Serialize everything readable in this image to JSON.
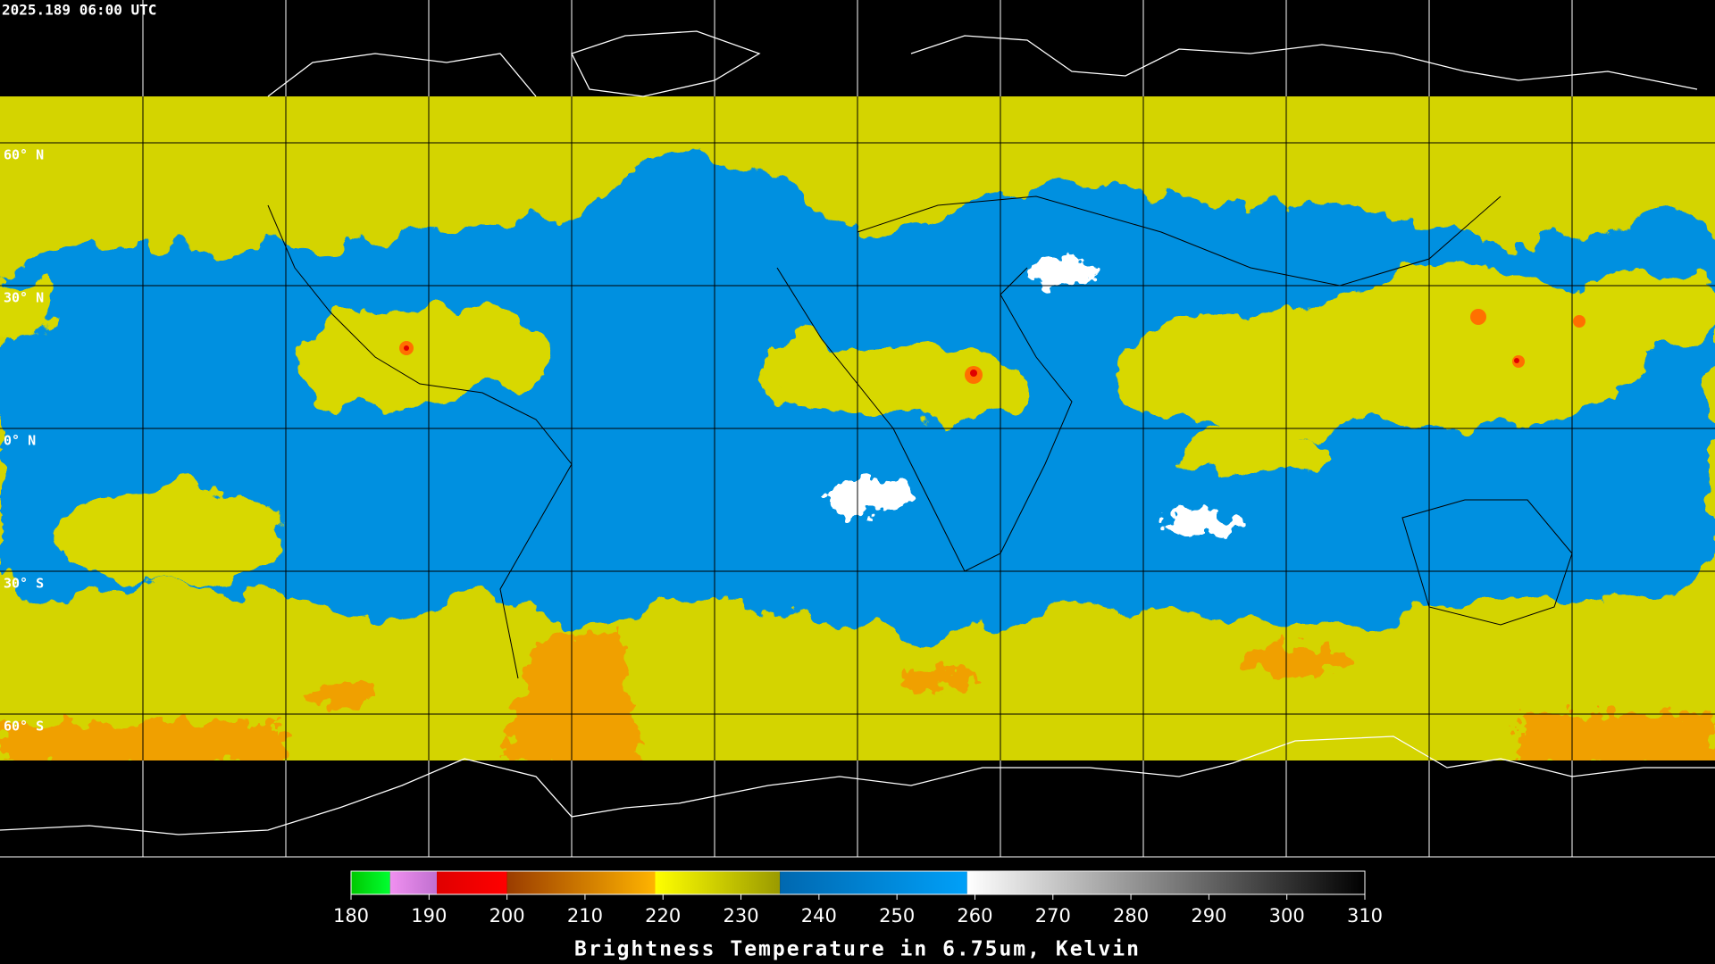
{
  "header": {
    "timestamp": "2025.189 06:00 UTC"
  },
  "map": {
    "lat_labels": [
      "60° N",
      "30° N",
      "0° N",
      "30° S",
      "60° S"
    ]
  },
  "colorbar": {
    "title": "Brightness Temperature in 6.75um, Kelvin",
    "lim": [
      180,
      310
    ],
    "ticks": [
      180,
      190,
      200,
      210,
      220,
      230,
      240,
      250,
      260,
      270,
      280,
      290,
      300,
      310
    ],
    "segments": [
      {
        "from": 180,
        "to": 185,
        "colors": [
          "#00c800",
          "#00ff30"
        ]
      },
      {
        "from": 185,
        "to": 191,
        "colors": [
          "#f090f0",
          "#c070d0"
        ]
      },
      {
        "from": 191,
        "to": 200,
        "colors": [
          "#e00000",
          "#ff0000"
        ]
      },
      {
        "from": 200,
        "to": 219,
        "colors": [
          "#9a3c00",
          "#ffb400"
        ]
      },
      {
        "from": 219,
        "to": 235,
        "colors": [
          "#ffff00",
          "#9a9a00"
        ]
      },
      {
        "from": 235,
        "to": 259,
        "colors": [
          "#0068b0",
          "#00a0f8"
        ]
      },
      {
        "from": 259,
        "to": 310,
        "colors": [
          "#ffffff",
          "#000000"
        ]
      }
    ]
  }
}
